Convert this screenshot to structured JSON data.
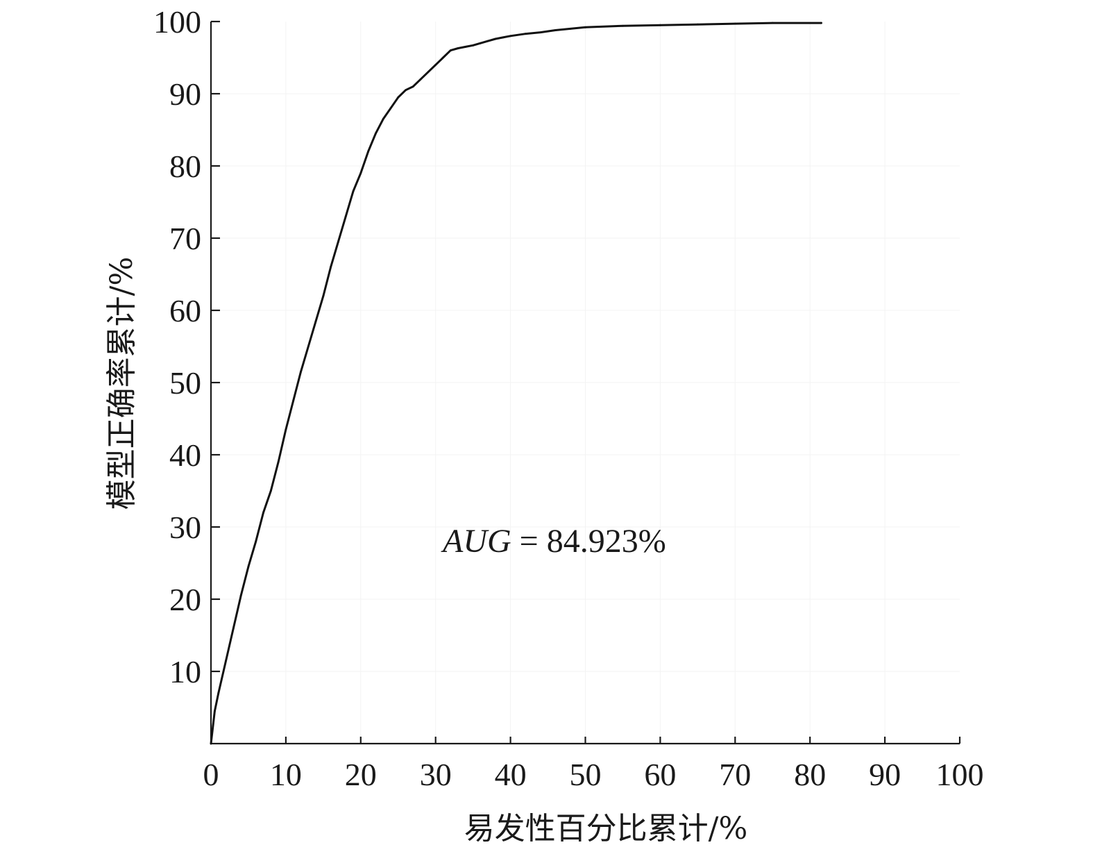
{
  "chart_data": {
    "type": "line",
    "title": "",
    "xlabel": "易发性百分比累计/%",
    "ylabel": "模型正确率累计/%",
    "xlim": [
      0,
      100
    ],
    "ylim": [
      0,
      100
    ],
    "x_ticks": [
      "0",
      "10",
      "20",
      "30",
      "40",
      "50",
      "60",
      "70",
      "80",
      "90",
      "100"
    ],
    "y_ticks": [
      "10",
      "20",
      "30",
      "40",
      "50",
      "60",
      "70",
      "80",
      "90",
      "100"
    ],
    "grid": true,
    "legend": "none",
    "annotation": {
      "italic_text": "AUG",
      "text": " = 84.923%"
    },
    "series": [
      {
        "color": "#111111",
        "x": [
          0,
          0.5,
          1,
          2,
          3,
          4,
          5,
          6,
          7,
          8,
          9,
          10,
          11,
          12,
          13,
          14,
          15,
          16,
          17,
          18,
          19,
          20,
          21,
          22,
          23,
          24,
          25,
          26,
          27,
          28,
          29,
          30,
          31,
          32,
          33,
          34,
          35,
          36,
          37,
          38,
          39,
          40,
          42,
          44,
          46,
          48,
          50,
          55,
          60,
          65,
          70,
          75,
          81.5
        ],
        "y": [
          0,
          4.5,
          7,
          11.5,
          16,
          20.5,
          24.5,
          28,
          32,
          35,
          39,
          43.5,
          47.5,
          51.5,
          55,
          58.5,
          62,
          66,
          69.5,
          73,
          76.5,
          79,
          82,
          84.5,
          86.5,
          88,
          89.5,
          90.5,
          91,
          92,
          93,
          94,
          95,
          96,
          96.3,
          96.5,
          96.7,
          97,
          97.3,
          97.6,
          97.8,
          98,
          98.3,
          98.5,
          98.8,
          99,
          99.2,
          99.4,
          99.5,
          99.6,
          99.7,
          99.8,
          99.8
        ]
      }
    ]
  }
}
